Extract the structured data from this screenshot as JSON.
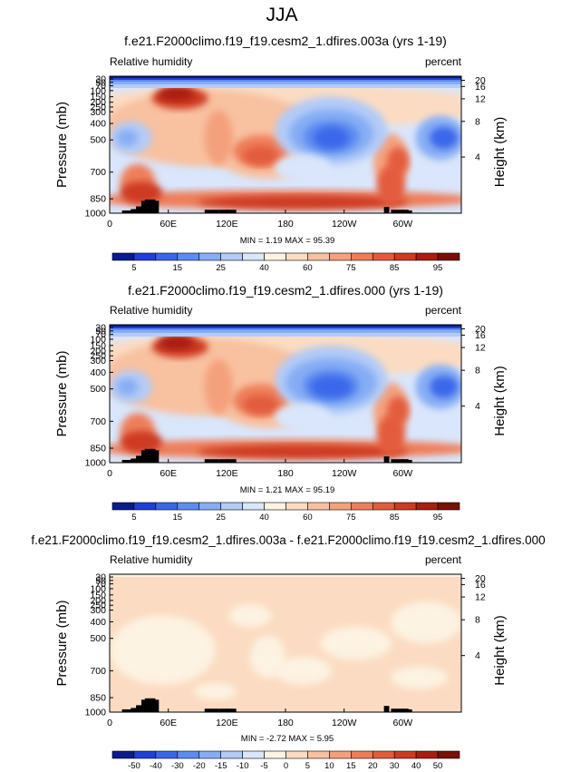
{
  "page_title": "JJA",
  "colors": {
    "abs_palette": [
      "#0a1b8c",
      "#1f3fd8",
      "#3a67ea",
      "#5d8cf0",
      "#86adf4",
      "#b2cbf7",
      "#d9e6fb",
      "#fdf3e2",
      "#fbdcc2",
      "#f8c1a0",
      "#f4a07c",
      "#ee7e5a",
      "#e35b3c",
      "#cd3b22",
      "#a81e10",
      "#7a0f05"
    ],
    "diff_palette": [
      "#0a1b8c",
      "#1f3fd8",
      "#3a67ea",
      "#5d8cf0",
      "#86adf4",
      "#b2cbf7",
      "#d9e6fb",
      "#fdf3e2",
      "#fbdcc2",
      "#f8c1a0",
      "#f4a07c",
      "#ee7e5a",
      "#e35b3c",
      "#cd3b22",
      "#a81e10",
      "#7a0f05"
    ],
    "terrain": "#000000"
  },
  "chart_data": [
    {
      "type": "heatmap",
      "title": "f.e21.F2000climo.f19_f19.cesm2_1.dfires.003a (yrs 1-19)",
      "left_label": "Relative humidity",
      "right_label": "percent",
      "ylabel": "Pressure (mb)",
      "ylabel_right": "Height (km)",
      "x_ticks": [
        "0",
        "60E",
        "120E",
        "180",
        "120W",
        "60W"
      ],
      "y_ticks": [
        "1000",
        "850",
        "700",
        "500",
        "400",
        "300",
        "250",
        "200",
        "150",
        "100",
        "70",
        "50",
        "30"
      ],
      "height_ticks": [
        "4",
        "8",
        "12",
        "16",
        "20"
      ],
      "stats": "MIN =  1.19  MAX = 95.39",
      "colorbar_labels": [
        "5",
        "15",
        "25",
        "40",
        "60",
        "75",
        "85",
        "95"
      ],
      "min": 1.19,
      "max": 95.39
    },
    {
      "type": "heatmap",
      "title": "f.e21.F2000climo.f19_f19.cesm2_1.dfires.000 (yrs 1-19)",
      "left_label": "Relative humidity",
      "right_label": "percent",
      "ylabel": "Pressure (mb)",
      "ylabel_right": "Height (km)",
      "x_ticks": [
        "0",
        "60E",
        "120E",
        "180",
        "120W",
        "60W"
      ],
      "y_ticks": [
        "1000",
        "850",
        "700",
        "500",
        "400",
        "300",
        "250",
        "200",
        "150",
        "100",
        "70",
        "50",
        "30"
      ],
      "height_ticks": [
        "4",
        "8",
        "12",
        "16",
        "20"
      ],
      "stats": "MIN =  1.21  MAX = 95.19",
      "colorbar_labels": [
        "5",
        "15",
        "25",
        "40",
        "60",
        "75",
        "85",
        "95"
      ],
      "min": 1.21,
      "max": 95.19
    },
    {
      "type": "heatmap",
      "title": "f.e21.F2000climo.f19_f19.cesm2_1.dfires.003a - f.e21.F2000climo.f19_f19.cesm2_1.dfires.000",
      "left_label": "Relative humidity",
      "right_label": "percent",
      "ylabel": "Pressure (mb)",
      "ylabel_right": "Height (km)",
      "x_ticks": [
        "0",
        "60E",
        "120E",
        "180",
        "120W",
        "60W"
      ],
      "y_ticks": [
        "1000",
        "850",
        "700",
        "500",
        "400",
        "300",
        "250",
        "200",
        "150",
        "100",
        "70",
        "50",
        "30"
      ],
      "height_ticks": [
        "4",
        "8",
        "12",
        "16",
        "20"
      ],
      "stats": "MIN = -2.72  MAX =  5.95",
      "colorbar_labels": [
        "-50",
        "-40",
        "-30",
        "-20",
        "-15",
        "-10",
        "-5",
        "0",
        "5",
        "10",
        "15",
        "20",
        "30",
        "40",
        "50"
      ],
      "min": -2.72,
      "max": 5.95
    }
  ]
}
